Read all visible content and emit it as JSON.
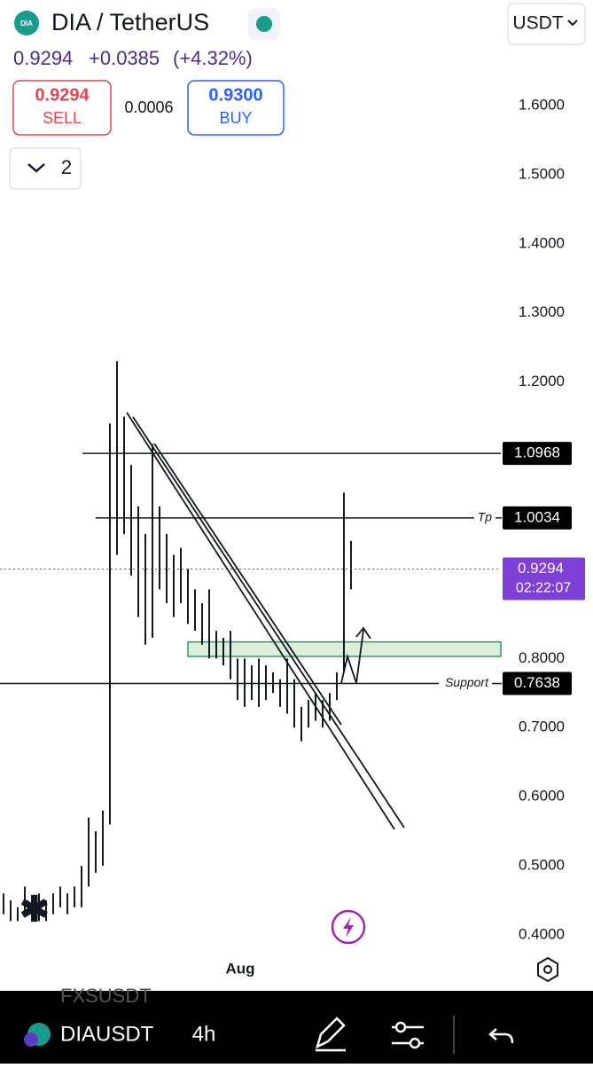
{
  "header": {
    "logo_icon": "DIA",
    "title": "DIA / TetherUS",
    "currency": "USDT",
    "price": "0.9294",
    "change": "+0.0385",
    "change_pct": "(+4.32%)",
    "sell_price": "0.9294",
    "sell_label": "SELL",
    "spread": "0.0006",
    "buy_price": "0.9300",
    "buy_label": "BUY",
    "indicators_count": "2"
  },
  "chart_data": {
    "type": "candlestick",
    "ylim": [
      0.4,
      1.6
    ],
    "yticks": [
      {
        "value": 0.4,
        "label": "0.4000"
      },
      {
        "value": 0.5,
        "label": "0.5000"
      },
      {
        "value": 0.6,
        "label": "0.6000"
      },
      {
        "value": 0.7,
        "label": "0.7000"
      },
      {
        "value": 0.8,
        "label": "0.8000"
      },
      {
        "value": 1.2,
        "label": "1.2000"
      },
      {
        "value": 1.3,
        "label": "1.3000"
      },
      {
        "value": 1.4,
        "label": "1.4000"
      },
      {
        "value": 1.5,
        "label": "1.5000"
      },
      {
        "value": 1.6,
        "label": "1.6000"
      }
    ],
    "x_label": "Aug",
    "color": "#131722",
    "high": [
      0.46,
      0.45,
      0.44,
      0.47,
      0.45,
      0.46,
      0.45,
      0.46,
      0.47,
      0.46,
      0.47,
      0.5,
      0.57,
      0.55,
      0.58,
      1.14,
      1.23,
      1.15,
      1.08,
      1.02,
      0.98,
      1.11,
      1.02,
      0.98,
      0.95,
      0.96,
      0.93,
      0.9,
      0.88,
      0.9,
      0.84,
      0.83,
      0.84,
      0.8,
      0.8,
      0.79,
      0.8,
      0.79,
      0.78,
      0.77,
      0.8,
      0.77,
      0.73,
      0.74,
      0.75,
      0.74,
      0.75,
      0.78,
      1.04,
      0.97
    ],
    "low": [
      0.43,
      0.42,
      0.42,
      0.43,
      0.43,
      0.42,
      0.42,
      0.43,
      0.44,
      0.43,
      0.44,
      0.44,
      0.47,
      0.49,
      0.5,
      0.56,
      0.95,
      0.98,
      0.92,
      0.86,
      0.82,
      0.83,
      0.9,
      0.88,
      0.86,
      0.88,
      0.85,
      0.84,
      0.82,
      0.8,
      0.8,
      0.79,
      0.77,
      0.74,
      0.73,
      0.74,
      0.73,
      0.74,
      0.75,
      0.73,
      0.72,
      0.7,
      0.68,
      0.7,
      0.71,
      0.7,
      0.71,
      0.74,
      0.78,
      0.9
    ],
    "levels": [
      {
        "value": 1.0968
      },
      {
        "value": 1.0034,
        "name": "Tp"
      },
      {
        "value": 0.9294,
        "timer": "02:22:07"
      },
      {
        "value": 0.7638,
        "name": "Support"
      }
    ],
    "zone": [
      0.803,
      0.824
    ]
  },
  "footer": {
    "faded_symbol": "FXSUSDT",
    "symbol": "DIAUSDT",
    "interval": "4h"
  }
}
